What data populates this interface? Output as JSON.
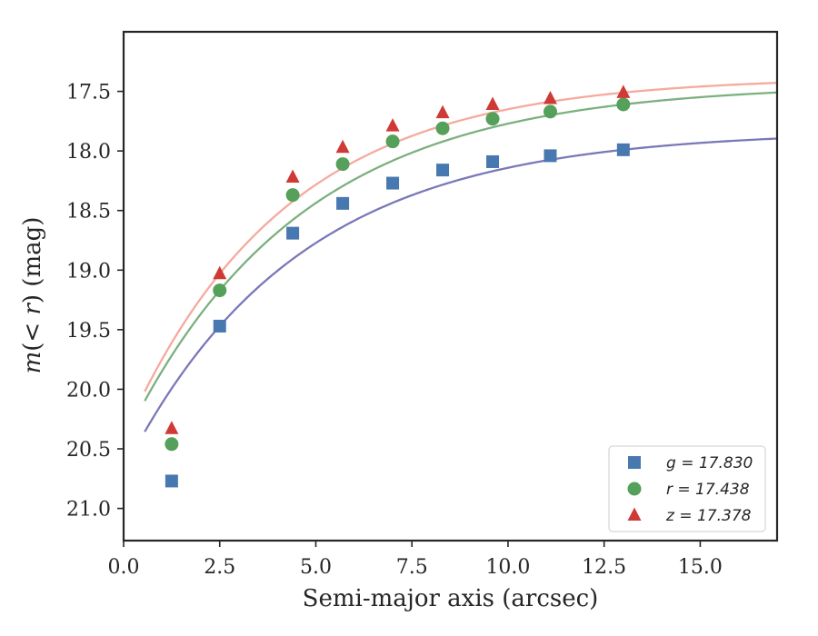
{
  "chart_data": {
    "type": "scatter",
    "xlabel": "Semi-major axis (arcsec)",
    "ylabel": "m(< r) (mag)",
    "xlim": [
      0,
      17
    ],
    "ylim": [
      21.27,
      17.0
    ],
    "y_inverted": true,
    "xticks": [
      0.0,
      2.5,
      5.0,
      7.5,
      10.0,
      12.5,
      15.0
    ],
    "xtick_labels": [
      "0.0",
      "2.5",
      "5.0",
      "7.5",
      "10.0",
      "12.5",
      "15.0"
    ],
    "yticks": [
      17.5,
      18.0,
      18.5,
      19.0,
      19.5,
      20.0,
      20.5,
      21.0
    ],
    "ytick_labels": [
      "17.5",
      "18.0",
      "18.5",
      "19.0",
      "19.5",
      "20.0",
      "20.5",
      "21.0"
    ],
    "grid": false,
    "legend_position": "bottom-right",
    "series": [
      {
        "name": "g = 17.830",
        "marker": "square",
        "color": "#4878b0",
        "curve_color": "#7a78b8",
        "x": [
          1.25,
          2.5,
          4.4,
          5.7,
          7.0,
          8.3,
          9.6,
          11.1,
          13.0
        ],
        "y": [
          20.77,
          19.47,
          18.69,
          18.44,
          18.27,
          18.16,
          18.09,
          18.04,
          17.99
        ],
        "model_mag": 17.83
      },
      {
        "name": "r = 17.438",
        "marker": "circle",
        "color": "#55a05a",
        "curve_color": "#7cb07f",
        "x": [
          1.25,
          2.5,
          4.4,
          5.7,
          7.0,
          8.3,
          9.6,
          11.1,
          13.0
        ],
        "y": [
          20.46,
          19.17,
          18.37,
          18.11,
          17.92,
          17.81,
          17.73,
          17.67,
          17.61
        ],
        "model_mag": 17.438
      },
      {
        "name": "z = 17.378",
        "marker": "triangle",
        "color": "#d03a36",
        "curve_color": "#f5aa9e",
        "x": [
          1.25,
          2.5,
          4.4,
          5.7,
          7.0,
          8.3,
          9.6,
          11.1,
          13.0
        ],
        "y": [
          20.33,
          19.03,
          18.22,
          17.97,
          17.79,
          17.68,
          17.61,
          17.56,
          17.51
        ],
        "model_mag": 17.378
      }
    ]
  }
}
